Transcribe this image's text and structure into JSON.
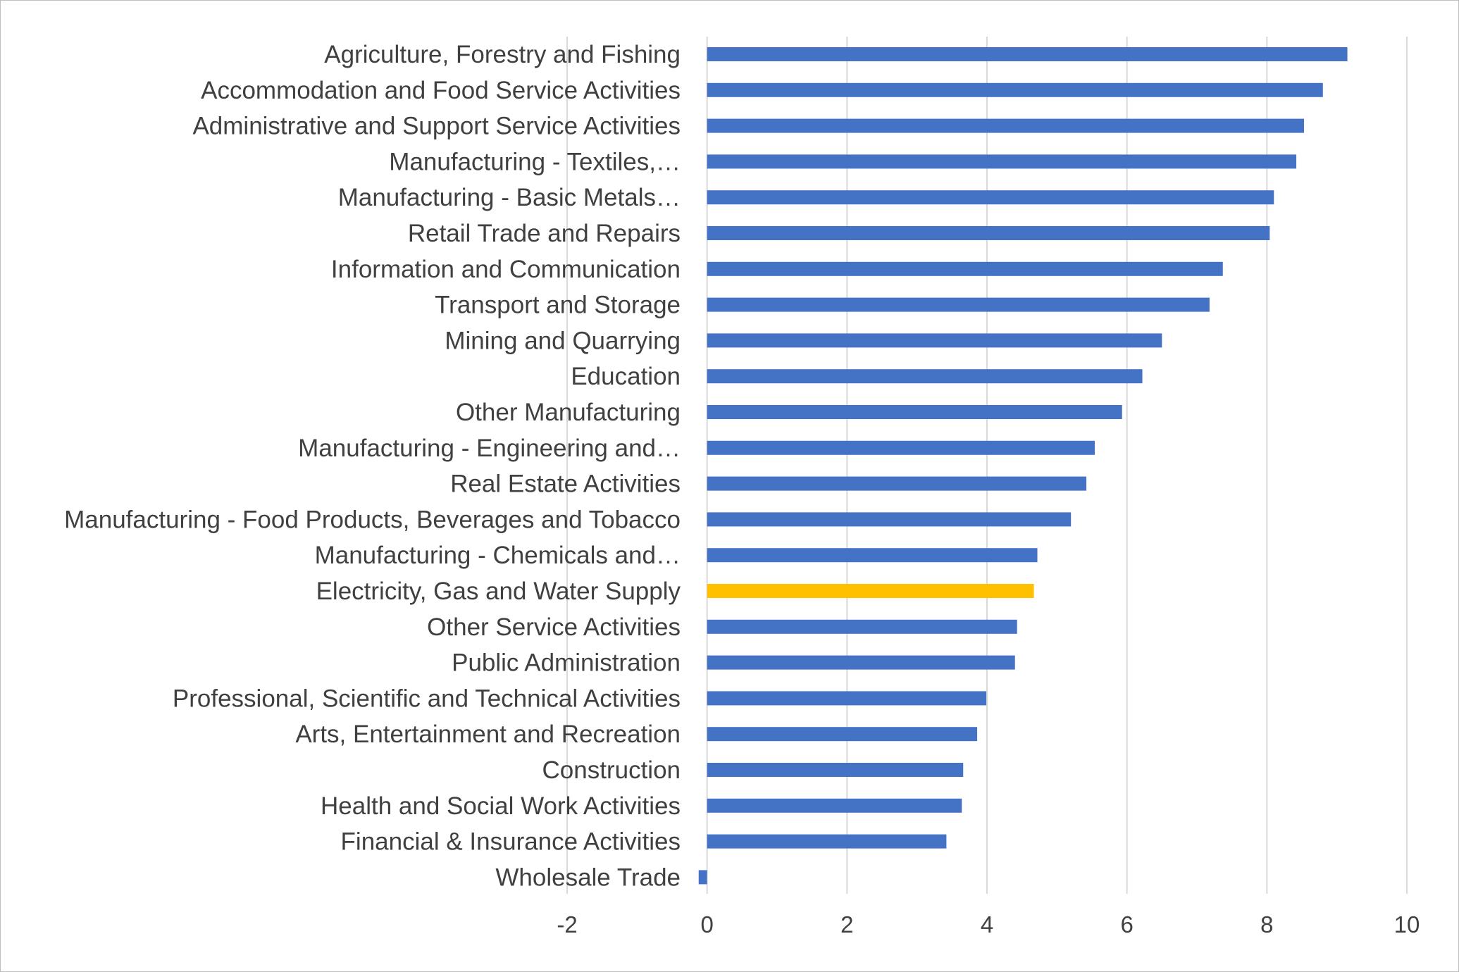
{
  "chart_data": {
    "type": "bar",
    "orientation": "horizontal",
    "title": "",
    "xlabel": "",
    "ylabel": "",
    "xlim": [
      -2,
      10
    ],
    "xticks": [
      -2,
      0,
      2,
      4,
      6,
      8,
      10
    ],
    "xtick_labels": [
      "-2",
      "0",
      "2",
      "4",
      "6",
      "8",
      "10"
    ],
    "grid": "vertical",
    "legend": "none",
    "default_color": "#4472C4",
    "highlight_color": "#FFC000",
    "categories": [
      "Agriculture, Forestry and Fishing",
      "Accommodation and Food Service Activities",
      "Administrative and Support Service Activities",
      "Manufacturing - Textiles,…",
      "Manufacturing - Basic Metals…",
      "Retail Trade and Repairs",
      "Information and Communication",
      "Transport and Storage",
      "Mining and Quarrying",
      "Education",
      "Other Manufacturing",
      "Manufacturing - Engineering and…",
      "Real Estate Activities",
      "Manufacturing - Food Products, Beverages and Tobacco",
      "Manufacturing - Chemicals and…",
      "Electricity, Gas and Water Supply",
      "Other Service Activities",
      "Public Administration",
      "Professional, Scientific and Technical Activities",
      "Arts, Entertainment and Recreation",
      "Construction",
      "Health and Social Work Activities",
      "Financial & Insurance Activities",
      "Wholesale Trade"
    ],
    "values": [
      9.15,
      8.8,
      8.53,
      8.42,
      8.1,
      8.04,
      7.37,
      7.18,
      6.5,
      6.22,
      5.93,
      5.54,
      5.42,
      5.2,
      4.72,
      4.67,
      4.43,
      4.4,
      3.99,
      3.86,
      3.66,
      3.64,
      3.42,
      -0.12
    ],
    "highlight_index": 15
  }
}
